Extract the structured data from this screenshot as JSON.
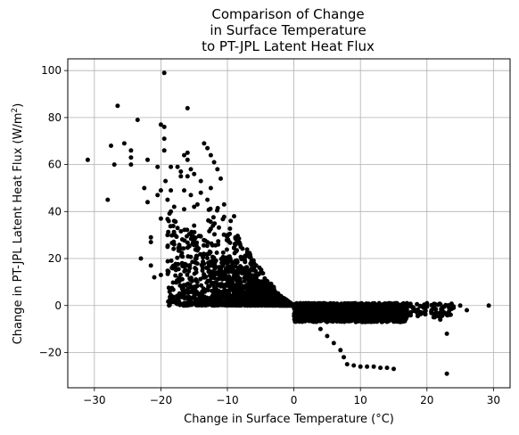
{
  "chart_data": {
    "type": "scatter",
    "title_lines": [
      "Comparison of Change",
      "in Surface Temperature",
      "to PT-JPL Latent Heat Flux"
    ],
    "xlabel": "Change in Surface Temperature (°C)",
    "ylabel_main": "Change in PT-JPL Latent Heat Flux (W/m",
    "ylabel_sup": "2",
    "ylabel_end": ")",
    "xlim": [
      -34,
      32.5
    ],
    "ylim": [
      -35,
      105
    ],
    "xticks": [
      -30,
      -20,
      -10,
      0,
      10,
      20,
      30
    ],
    "xtick_labels": [
      "−30",
      "−20",
      "−10",
      "0",
      "10",
      "20",
      "30"
    ],
    "yticks": [
      -20,
      0,
      20,
      40,
      60,
      80,
      100
    ],
    "ytick_labels": [
      "−20",
      "0",
      "20",
      "40",
      "60",
      "80",
      "100"
    ],
    "grid": true,
    "marker_color": "#000000",
    "series": [
      {
        "points": [
          [
            -31,
            62
          ],
          [
            -28,
            45
          ],
          [
            -27.5,
            68
          ],
          [
            -27,
            60
          ],
          [
            -26.5,
            85
          ],
          [
            -25.5,
            69
          ],
          [
            -24.5,
            66
          ],
          [
            -24.5,
            63
          ],
          [
            -24.5,
            60
          ],
          [
            -23.5,
            79
          ],
          [
            -23,
            20
          ],
          [
            -22.5,
            50
          ],
          [
            -22,
            44
          ],
          [
            -22,
            62
          ],
          [
            -21.5,
            29
          ],
          [
            -21.5,
            27
          ],
          [
            -21.5,
            17
          ],
          [
            -21,
            12
          ],
          [
            -20.5,
            47
          ],
          [
            -20.5,
            59
          ],
          [
            -20,
            77
          ],
          [
            -20,
            49
          ],
          [
            -20,
            37
          ],
          [
            -20,
            13
          ],
          [
            -19.5,
            99
          ],
          [
            -19.5,
            71
          ],
          [
            -19.5,
            66
          ],
          [
            -19.5,
            76
          ],
          [
            -19.3,
            53
          ],
          [
            -19,
            45
          ],
          [
            -19,
            30
          ],
          [
            -19,
            25
          ],
          [
            -18.5,
            49
          ],
          [
            -18.5,
            59
          ],
          [
            -18.5,
            40
          ],
          [
            -18,
            42
          ],
          [
            -18,
            36
          ],
          [
            -18,
            26
          ],
          [
            -18,
            16
          ],
          [
            -17.5,
            33
          ],
          [
            -17.5,
            59
          ],
          [
            -17,
            57
          ],
          [
            -17,
            55
          ],
          [
            -16.5,
            64
          ],
          [
            -16.5,
            49
          ],
          [
            -16.5,
            41
          ],
          [
            -16,
            84
          ],
          [
            -16,
            65
          ],
          [
            -16,
            62
          ],
          [
            -16,
            55
          ],
          [
            -15.5,
            58
          ],
          [
            -15.5,
            47
          ],
          [
            -15,
            56
          ],
          [
            -15,
            42
          ],
          [
            -15,
            34
          ],
          [
            -14.5,
            43
          ],
          [
            -14,
            53
          ],
          [
            -14,
            48
          ],
          [
            -13.5,
            69
          ],
          [
            -13,
            67
          ],
          [
            -13,
            45
          ],
          [
            -12.5,
            64
          ],
          [
            -12.5,
            50
          ],
          [
            -12,
            61
          ],
          [
            -11.5,
            58
          ],
          [
            -11,
            54
          ],
          [
            -10.5,
            43
          ],
          [
            -10,
            30
          ],
          [
            -9.5,
            36
          ],
          [
            -9,
            38
          ],
          [
            -8.5,
            28
          ],
          [
            -8,
            25
          ],
          [
            -7,
            22
          ],
          [
            -6,
            18
          ],
          [
            -5,
            14
          ],
          [
            -4,
            10
          ],
          [
            -3,
            7
          ],
          [
            -2,
            4
          ],
          [
            -1,
            2
          ],
          [
            2,
            -3
          ],
          [
            3,
            -6
          ],
          [
            4,
            -10
          ],
          [
            5,
            -13
          ],
          [
            6,
            -16
          ],
          [
            7,
            -19
          ],
          [
            7.5,
            -22
          ],
          [
            8,
            -25
          ],
          [
            9,
            -25.5
          ],
          [
            10,
            -26
          ],
          [
            11,
            -26
          ],
          [
            12,
            -26
          ],
          [
            13,
            -26.5
          ],
          [
            14,
            -26.5
          ],
          [
            15,
            -27
          ],
          [
            17,
            1
          ],
          [
            18,
            -1
          ],
          [
            19,
            -3
          ],
          [
            20,
            1
          ],
          [
            21,
            -5
          ],
          [
            22,
            -6
          ],
          [
            23,
            -29
          ],
          [
            23,
            -12
          ],
          [
            24,
            -1
          ],
          [
            25,
            0
          ],
          [
            26,
            -2
          ],
          [
            29.3,
            0
          ]
        ],
        "dense_regions": [
          {
            "x": [
              -19,
              0
            ],
            "y_min": 0,
            "y_upper_at_left": 42,
            "count": 1100
          },
          {
            "x": [
              -13,
              -1
            ],
            "y_min": 0,
            "y_upper_at_left": 48,
            "count": 500
          },
          {
            "x": [
              0,
              17
            ],
            "y": [
              -7,
              1
            ],
            "count": 1300
          },
          {
            "x": [
              17,
              24
            ],
            "y": [
              -5,
              1
            ],
            "count": 80
          }
        ]
      }
    ]
  }
}
